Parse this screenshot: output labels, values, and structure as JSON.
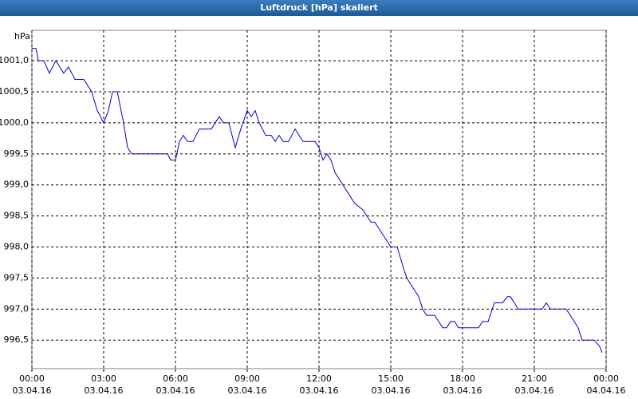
{
  "chart_data": {
    "type": "line",
    "title": "Luftdruck [hPa] skaliert",
    "y_label": "hPa",
    "xlim": [
      0,
      24
    ],
    "xticks": [
      {
        "value": 0,
        "label": [
          "00:00",
          "03.04.16"
        ]
      },
      {
        "value": 3,
        "label": [
          "03:00",
          "03.04.16"
        ]
      },
      {
        "value": 6,
        "label": [
          "06:00",
          "03.04.16"
        ]
      },
      {
        "value": 9,
        "label": [
          "09:00",
          "03.04.16"
        ]
      },
      {
        "value": 12,
        "label": [
          "12:00",
          "03.04.16"
        ]
      },
      {
        "value": 15,
        "label": [
          "15:00",
          "03.04.16"
        ]
      },
      {
        "value": 18,
        "label": [
          "18:00",
          "03.04.16"
        ]
      },
      {
        "value": 21,
        "label": [
          "21:00",
          "03.04.16"
        ]
      },
      {
        "value": 24,
        "label": [
          "00:00",
          "04.04.16"
        ]
      }
    ],
    "ylim": [
      996.04,
      1001.49
    ],
    "yticks": [
      {
        "value": 996.5,
        "label": "996,5"
      },
      {
        "value": 997.0,
        "label": "997,0"
      },
      {
        "value": 997.5,
        "label": "997,5"
      },
      {
        "value": 998.0,
        "label": "998,0"
      },
      {
        "value": 998.5,
        "label": "998,5"
      },
      {
        "value": 999.0,
        "label": "999,0"
      },
      {
        "value": 999.5,
        "label": "999,5"
      },
      {
        "value": 1000.0,
        "label": "1000,0"
      },
      {
        "value": 1000.5,
        "label": "1000,5"
      },
      {
        "value": 1001.0,
        "label": "1001,0"
      }
    ],
    "grid": true,
    "series": [
      {
        "color": "#0000c8",
        "x": [
          0,
          0.17,
          0.27,
          0.5,
          0.73,
          1.0,
          1.33,
          1.53,
          1.8,
          2.17,
          2.5,
          2.73,
          3.0,
          3.2,
          3.37,
          3.57,
          3.83,
          4.0,
          4.17,
          5.67,
          5.8,
          6.0,
          6.17,
          6.33,
          6.5,
          6.73,
          7.0,
          7.5,
          7.83,
          8.0,
          8.23,
          8.5,
          8.73,
          9.0,
          9.17,
          9.33,
          9.5,
          9.77,
          10.0,
          10.17,
          10.33,
          10.5,
          10.73,
          11.0,
          11.33,
          11.83,
          12.0,
          12.17,
          12.33,
          12.5,
          12.67,
          13.0,
          13.33,
          13.5,
          13.83,
          14.0,
          14.17,
          14.33,
          14.67,
          15.0,
          15.27,
          15.5,
          15.67,
          16.0,
          16.17,
          16.33,
          16.5,
          16.83,
          17.0,
          17.17,
          17.33,
          17.5,
          17.67,
          17.83,
          18.67,
          18.83,
          19.07,
          19.33,
          19.67,
          19.87,
          20.0,
          20.33,
          21.33,
          21.5,
          21.67,
          22.33,
          22.67,
          22.83,
          23.0,
          23.5,
          23.73,
          23.83
        ],
        "values": [
          1001.2,
          1001.2,
          1001.0,
          1001.0,
          1000.8,
          1001.0,
          1000.8,
          1000.9,
          1000.7,
          1000.7,
          1000.5,
          1000.2,
          1000.0,
          1000.2,
          1000.5,
          1000.5,
          1000.0,
          999.6,
          999.5,
          999.5,
          999.4,
          999.4,
          999.7,
          999.8,
          999.7,
          999.7,
          999.9,
          999.9,
          1000.1,
          1000.0,
          1000.0,
          999.6,
          999.9,
          1000.2,
          1000.1,
          1000.2,
          1000.0,
          999.8,
          999.8,
          999.7,
          999.8,
          999.7,
          999.7,
          999.9,
          999.7,
          999.7,
          999.6,
          999.4,
          999.5,
          999.4,
          999.2,
          999.0,
          998.8,
          998.7,
          998.6,
          998.5,
          998.4,
          998.4,
          998.2,
          998.0,
          998.0,
          997.7,
          997.5,
          997.3,
          997.2,
          997.0,
          996.9,
          996.9,
          996.8,
          996.7,
          996.7,
          996.8,
          996.8,
          996.7,
          996.7,
          996.8,
          996.8,
          997.1,
          997.1,
          997.2,
          997.2,
          997.0,
          997.0,
          997.1,
          997.0,
          997.0,
          996.8,
          996.7,
          996.5,
          996.5,
          996.4,
          996.3
        ]
      }
    ]
  }
}
